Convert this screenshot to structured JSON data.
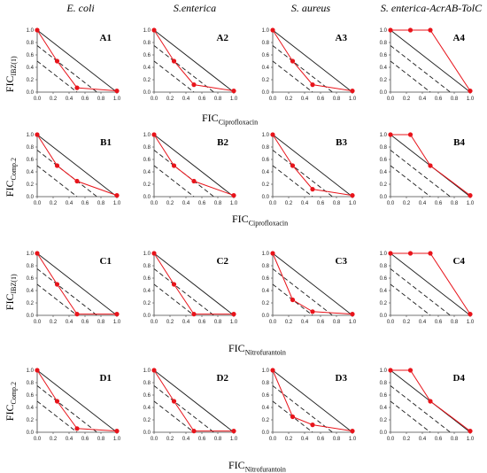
{
  "column_headers": [
    "E. coli",
    "S.enterica",
    "S. aureus",
    "S. enterica-AcrAB-TolC"
  ],
  "row_ylabels": [
    {
      "main": "FIC",
      "sub": "IBZ(1)"
    },
    {
      "main": "FIC",
      "sub": "Comp.2"
    },
    {
      "main": "FIC",
      "sub": "IBZ(1)"
    },
    {
      "main": "FIC",
      "sub": "Comp.2"
    }
  ],
  "row_xlabels": [
    {
      "main": "FIC",
      "sub": "Ciprofloxacin"
    },
    {
      "main": "FIC",
      "sub": "Ciprofloxacin"
    },
    {
      "main": "FIC",
      "sub": "Nitrofurantoin"
    },
    {
      "main": "FIC",
      "sub": "Nitrofurantoin"
    }
  ],
  "colors": {
    "series": "#e8141b",
    "reference": "#1a1a1a"
  },
  "chart_data": [
    {
      "type": "line",
      "panel": "A1",
      "xlim": [
        0,
        1
      ],
      "ylim": [
        0,
        1
      ],
      "x": [
        0,
        0.25,
        0.5,
        1
      ],
      "y": [
        1,
        0.5,
        0.07,
        0.02
      ]
    },
    {
      "type": "line",
      "panel": "A2",
      "xlim": [
        0,
        1
      ],
      "ylim": [
        0,
        1
      ],
      "x": [
        0,
        0.25,
        0.5,
        1
      ],
      "y": [
        1,
        0.5,
        0.12,
        0.02
      ]
    },
    {
      "type": "line",
      "panel": "A3",
      "xlim": [
        0,
        1
      ],
      "ylim": [
        0,
        1
      ],
      "x": [
        0,
        0.25,
        0.5,
        1
      ],
      "y": [
        1,
        0.5,
        0.12,
        0.02
      ]
    },
    {
      "type": "line",
      "panel": "A4",
      "xlim": [
        0,
        1
      ],
      "ylim": [
        0,
        1
      ],
      "x": [
        0,
        0.25,
        0.5,
        1
      ],
      "y": [
        1,
        1,
        1,
        0.02
      ]
    },
    {
      "type": "line",
      "panel": "B1",
      "xlim": [
        0,
        1
      ],
      "ylim": [
        0,
        1
      ],
      "x": [
        0,
        0.25,
        0.5,
        1
      ],
      "y": [
        1,
        0.5,
        0.25,
        0.02
      ]
    },
    {
      "type": "line",
      "panel": "B2",
      "xlim": [
        0,
        1
      ],
      "ylim": [
        0,
        1
      ],
      "x": [
        0,
        0.25,
        0.5,
        1
      ],
      "y": [
        1,
        0.5,
        0.25,
        0.02
      ]
    },
    {
      "type": "line",
      "panel": "B3",
      "xlim": [
        0,
        1
      ],
      "ylim": [
        0,
        1
      ],
      "x": [
        0,
        0.25,
        0.5,
        1
      ],
      "y": [
        1,
        0.5,
        0.12,
        0.02
      ]
    },
    {
      "type": "line",
      "panel": "B4",
      "xlim": [
        0,
        1
      ],
      "ylim": [
        0,
        1
      ],
      "x": [
        0,
        0.25,
        0.5,
        1
      ],
      "y": [
        1,
        1,
        0.5,
        0.02
      ]
    },
    {
      "type": "line",
      "panel": "C1",
      "xlim": [
        0,
        1
      ],
      "ylim": [
        0,
        1
      ],
      "x": [
        0,
        0.25,
        0.5,
        1
      ],
      "y": [
        1,
        0.5,
        0.02,
        0.02
      ]
    },
    {
      "type": "line",
      "panel": "C2",
      "xlim": [
        0,
        1
      ],
      "ylim": [
        0,
        1
      ],
      "x": [
        0,
        0.25,
        0.5,
        1
      ],
      "y": [
        1,
        0.5,
        0.02,
        0.02
      ]
    },
    {
      "type": "line",
      "panel": "C3",
      "xlim": [
        0,
        1
      ],
      "ylim": [
        0,
        1
      ],
      "x": [
        0,
        0.25,
        0.5,
        1
      ],
      "y": [
        1,
        0.25,
        0.06,
        0.02
      ]
    },
    {
      "type": "line",
      "panel": "C4",
      "xlim": [
        0,
        1
      ],
      "ylim": [
        0,
        1
      ],
      "x": [
        0,
        0.25,
        0.5,
        1
      ],
      "y": [
        1,
        1,
        1,
        0.02
      ]
    },
    {
      "type": "line",
      "panel": "D1",
      "xlim": [
        0,
        1
      ],
      "ylim": [
        0,
        1
      ],
      "x": [
        0,
        0.25,
        0.5,
        1
      ],
      "y": [
        1,
        0.5,
        0.06,
        0.02
      ]
    },
    {
      "type": "line",
      "panel": "D2",
      "xlim": [
        0,
        1
      ],
      "ylim": [
        0,
        1
      ],
      "x": [
        0,
        0.25,
        0.5,
        1
      ],
      "y": [
        1,
        0.5,
        0.02,
        0.02
      ]
    },
    {
      "type": "line",
      "panel": "D3",
      "xlim": [
        0,
        1
      ],
      "ylim": [
        0,
        1
      ],
      "x": [
        0,
        0.25,
        0.5,
        1
      ],
      "y": [
        1,
        0.25,
        0.12,
        0.02
      ]
    },
    {
      "type": "line",
      "panel": "D4",
      "xlim": [
        0,
        1
      ],
      "ylim": [
        0,
        1
      ],
      "x": [
        0,
        0.25,
        0.5,
        1
      ],
      "y": [
        1,
        1,
        0.5,
        0.02
      ]
    }
  ],
  "tick_labels": {
    "x": [
      "0.0",
      "0.2",
      "0.4",
      "0.6",
      "0.8",
      "1.0"
    ],
    "y": [
      "0.0",
      "0.2",
      "0.4",
      "0.6",
      "0.8",
      "1.0"
    ]
  }
}
